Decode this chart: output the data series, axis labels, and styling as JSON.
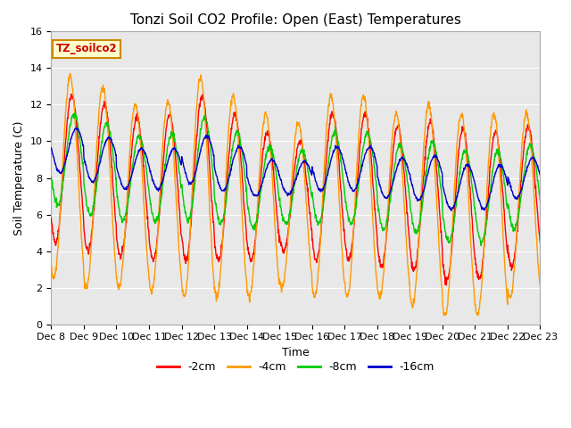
{
  "title": "Tonzi Soil CO2 Profile: Open (East) Temperatures",
  "ylabel": "Soil Temperature (C)",
  "xlabel": "Time",
  "ylim": [
    0,
    16
  ],
  "xlim": [
    0,
    15
  ],
  "annotation": "TZ_soilco2",
  "legend_labels": [
    "-2cm",
    "-4cm",
    "-8cm",
    "-16cm"
  ],
  "legend_colors": [
    "#ff0000",
    "#ff9900",
    "#00cc00",
    "#0000cc"
  ],
  "xtick_labels": [
    "Dec 8",
    "Dec 9",
    "Dec 10",
    "Dec 11",
    "Dec 12",
    "Dec 13",
    "Dec 14",
    "Dec 15",
    "Dec 16",
    "Dec 17",
    "Dec 18",
    "Dec 19",
    "Dec 20",
    "Dec 21",
    "Dec 22",
    "Dec 23"
  ],
  "background_color": "#e8e8e8",
  "title_fontsize": 11,
  "axis_label_fontsize": 9,
  "tick_fontsize": 8,
  "day_bases_2cm": [
    8.5,
    8.0,
    7.5,
    7.5,
    8.0,
    7.5,
    7.0,
    7.0,
    7.5,
    7.5,
    7.0,
    7.0,
    6.5,
    6.5,
    7.0
  ],
  "day_amps_2cm": [
    4.0,
    4.0,
    3.8,
    4.0,
    4.5,
    4.0,
    3.5,
    3.0,
    4.0,
    4.0,
    3.8,
    4.0,
    4.2,
    4.0,
    3.8
  ],
  "day_bases_4cm": [
    8.0,
    7.5,
    7.0,
    7.0,
    7.5,
    7.0,
    6.5,
    6.5,
    7.0,
    7.0,
    6.5,
    6.5,
    6.0,
    6.0,
    6.5
  ],
  "day_amps_4cm": [
    5.5,
    5.5,
    5.0,
    5.2,
    6.0,
    5.5,
    5.0,
    4.5,
    5.5,
    5.5,
    5.0,
    5.5,
    5.5,
    5.5,
    5.0
  ],
  "day_bases_8cm": [
    9.0,
    8.5,
    8.0,
    8.0,
    8.5,
    8.0,
    7.5,
    7.5,
    8.0,
    8.0,
    7.5,
    7.5,
    7.0,
    7.0,
    7.5
  ],
  "day_amps_8cm": [
    2.5,
    2.5,
    2.3,
    2.4,
    2.8,
    2.5,
    2.2,
    2.0,
    2.5,
    2.5,
    2.3,
    2.5,
    2.5,
    2.5,
    2.3
  ],
  "day_bases_16cm": [
    9.5,
    9.0,
    8.5,
    8.5,
    9.0,
    8.5,
    8.0,
    8.0,
    8.5,
    8.5,
    8.0,
    8.0,
    7.5,
    7.5,
    8.0
  ],
  "day_amps_16cm": [
    1.2,
    1.2,
    1.1,
    1.1,
    1.3,
    1.2,
    1.0,
    0.9,
    1.2,
    1.2,
    1.1,
    1.2,
    1.2,
    1.2,
    1.1
  ],
  "phase_2cm": 0.38,
  "phase_4cm": 0.33,
  "phase_8cm": 0.45,
  "phase_16cm": 0.52
}
